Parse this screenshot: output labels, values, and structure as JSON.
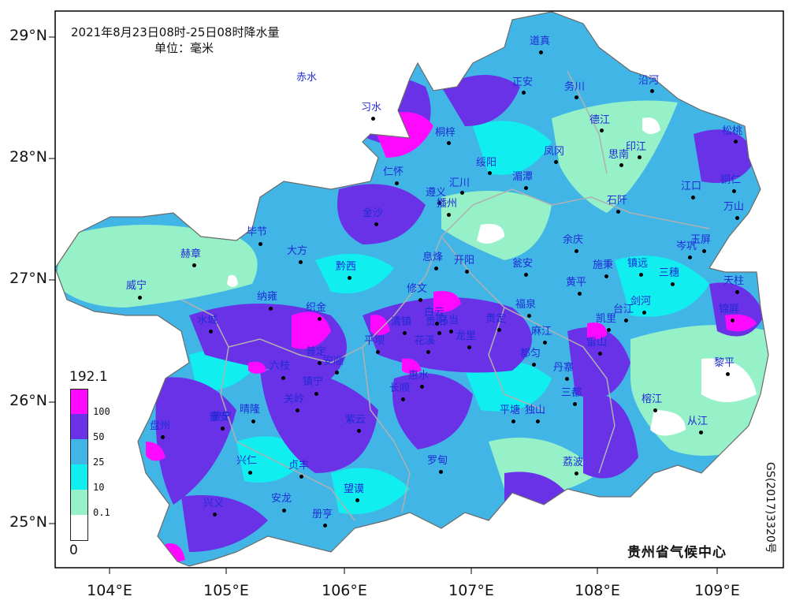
{
  "title": {
    "line1": "2021年8月23日08时-25日08时降水量",
    "line2": "单位：毫米"
  },
  "lat_ticks": [
    "29°N",
    "28°N",
    "27°N",
    "26°N",
    "25°N"
  ],
  "lon_ticks": [
    "104°E",
    "105°E",
    "106°E",
    "107°E",
    "108°E",
    "109°E"
  ],
  "legend": {
    "max": "192.1",
    "min": "0",
    "bins": [
      {
        "label": "100",
        "color": "#ff0aff"
      },
      {
        "label": "50",
        "color": "#6a32e6"
      },
      {
        "label": "25",
        "color": "#41b6e6"
      },
      {
        "label": "10",
        "color": "#11eef0"
      },
      {
        "label": "0.1",
        "color": "#96f0c8"
      },
      {
        "label": "",
        "color": "#ffffff"
      }
    ]
  },
  "credit": "贵州省气候中心",
  "map_code": "GS(2017)3320号",
  "cities": [
    "赤水",
    "习水",
    "桐梓",
    "道真",
    "正安",
    "务川",
    "沿河",
    "德江",
    "印江",
    "凤冈",
    "思南",
    "松桃",
    "铜仁",
    "江口",
    "万山",
    "石阡",
    "湄潭",
    "绥阳",
    "遵义",
    "汇川",
    "仁怀",
    "播州",
    "金沙",
    "毕节",
    "赫章",
    "大方",
    "黔西",
    "威宁",
    "纳雍",
    "织金",
    "水城",
    "六枝",
    "普安",
    "晴隆",
    "关岭",
    "镇宁",
    "安顺",
    "普定",
    "平坝",
    "清镇",
    "修文",
    "息烽",
    "开阳",
    "瓮安",
    "余庆",
    "施秉",
    "镇远",
    "黄平",
    "岑巩",
    "玉屏",
    "三穗",
    "天柱",
    "剑河",
    "锦屏",
    "台江",
    "凯里",
    "雷山",
    "麻江",
    "黔东南丹寨",
    "福泉",
    "贵定",
    "龙里",
    "花溪",
    "贵阳",
    "乌当",
    "白云",
    "长顺",
    "惠水",
    "紫云",
    "平塘",
    "独山",
    "三都",
    "榕江",
    "从江",
    "黎平",
    "荔波",
    "罗甸",
    "望谟",
    "册亨",
    "贞丰",
    "安龙",
    "兴仁",
    "兴义",
    "普宁",
    "盘州",
    "都匀"
  ]
}
